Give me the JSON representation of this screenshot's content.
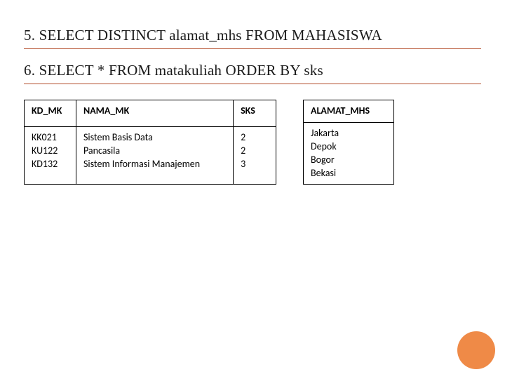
{
  "statements": [
    {
      "text": "5. SELECT DISTINCT alamat_mhs FROM MAHASISWA"
    },
    {
      "text": "6. SELECT * FROM matakuliah ORDER BY sks"
    }
  ],
  "leftTable": {
    "headers": [
      "KD_MK",
      "NAMA_MK",
      "SKS"
    ],
    "rows": [
      {
        "kd": [
          "KK021",
          "KU122",
          "KD132"
        ],
        "nama": [
          "Sistem Basis Data",
          "Pancasila",
          "Sistem Informasi Manajemen"
        ],
        "sks": [
          "2",
          "2",
          "3"
        ]
      }
    ]
  },
  "rightTable": {
    "header": "ALAMAT_MHS",
    "values": [
      "Jakarta",
      "Depok",
      "Bogor",
      "Bekasi"
    ]
  },
  "accent": {
    "circle_color": "#ef8a47",
    "underline_color": "#b34d2a"
  }
}
